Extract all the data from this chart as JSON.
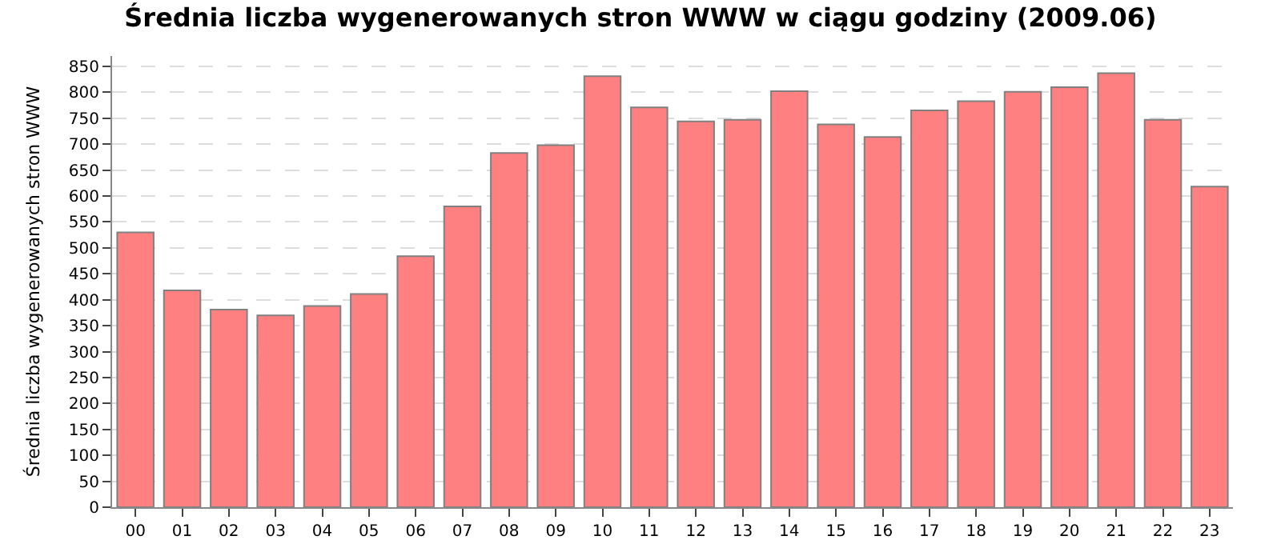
{
  "chart_data": {
    "type": "bar",
    "title": "Średnia liczba wygenerowanych stron WWW w ciągu godziny (2009.06)",
    "ylabel": "Średnia liczba wygenerowanych stron WWW",
    "categories": [
      "00",
      "01",
      "02",
      "03",
      "04",
      "05",
      "06",
      "07",
      "08",
      "09",
      "10",
      "11",
      "12",
      "13",
      "14",
      "15",
      "16",
      "17",
      "18",
      "19",
      "20",
      "21",
      "22",
      "23"
    ],
    "values": [
      530,
      418,
      381,
      370,
      388,
      411,
      484,
      580,
      683,
      698,
      831,
      771,
      744,
      747,
      802,
      738,
      714,
      765,
      783,
      801,
      810,
      837,
      747,
      618
    ],
    "color": "#ff8080",
    "ylim": [
      0,
      870
    ],
    "yticks": [
      0,
      50,
      100,
      150,
      200,
      250,
      300,
      350,
      400,
      450,
      500,
      550,
      600,
      650,
      700,
      750,
      800,
      850
    ],
    "grid": "y",
    "legend": false
  }
}
